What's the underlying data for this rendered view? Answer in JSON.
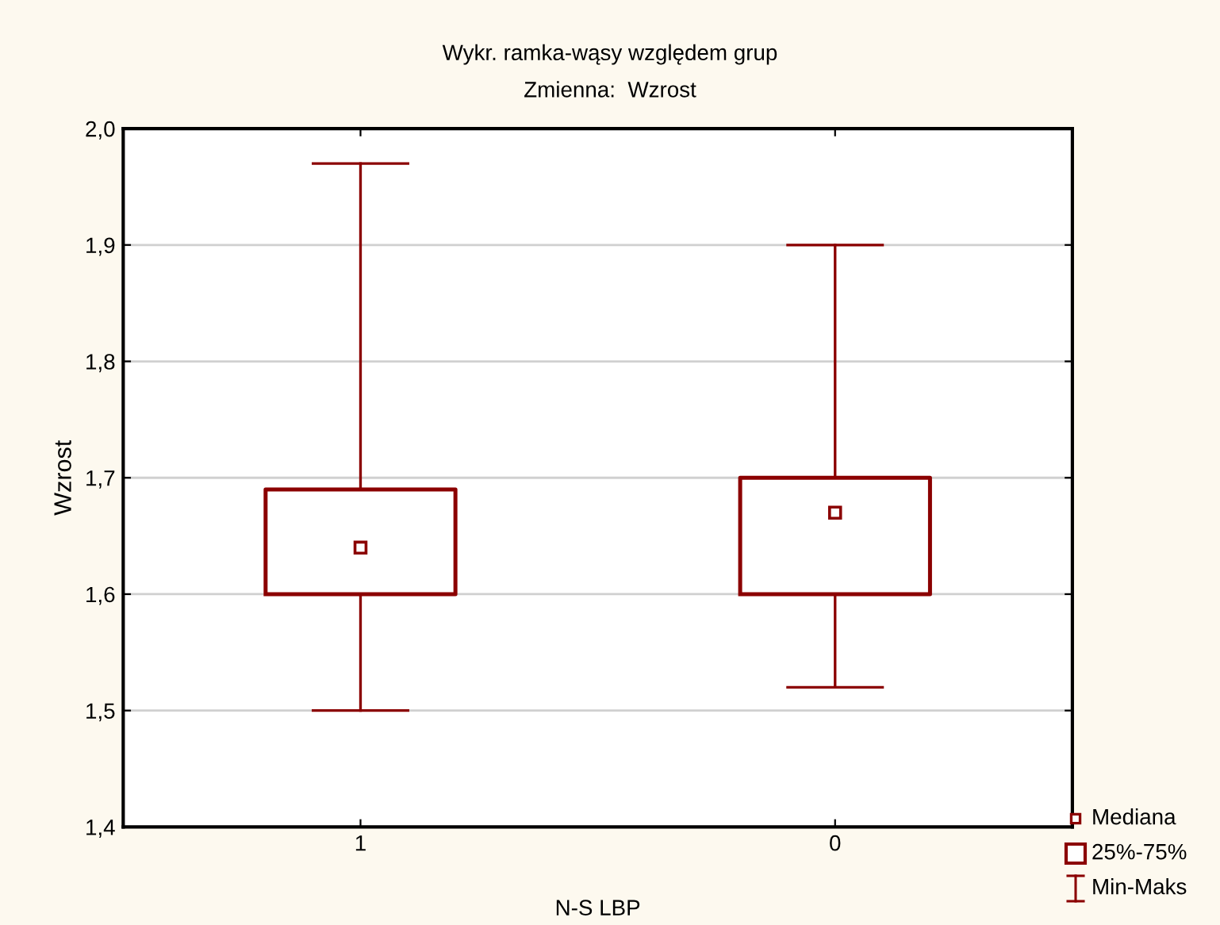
{
  "chart_data": {
    "type": "box",
    "title": "Wykr. ramka-wąsy względem grup",
    "subtitle": "Zmienna:  Wzrost",
    "xlabel": "N-S LBP",
    "ylabel": "Wzrost",
    "categories": [
      "1",
      "0"
    ],
    "series": [
      {
        "color": "#8b0000",
        "boxes": [
          {
            "low": 1.5,
            "q1": 1.6,
            "median": 1.64,
            "q3": 1.69,
            "high": 1.97
          },
          {
            "low": 1.52,
            "q1": 1.6,
            "median": 1.67,
            "q3": 1.7,
            "high": 1.9
          }
        ]
      }
    ],
    "ylim": [
      1.4,
      2.0
    ],
    "yticks": [
      {
        "value": 1.4,
        "label": "1,4"
      },
      {
        "value": 1.5,
        "label": "1,5"
      },
      {
        "value": 1.6,
        "label": "1,6"
      },
      {
        "value": 1.7,
        "label": "1,7"
      },
      {
        "value": 1.8,
        "label": "1,8"
      },
      {
        "value": 1.9,
        "label": "1,9"
      },
      {
        "value": 2.0,
        "label": "2,0"
      }
    ],
    "grid": "y",
    "marker": "square",
    "annotations": [
      "Mediana",
      "25%-75%",
      "Min-Maks"
    ]
  }
}
